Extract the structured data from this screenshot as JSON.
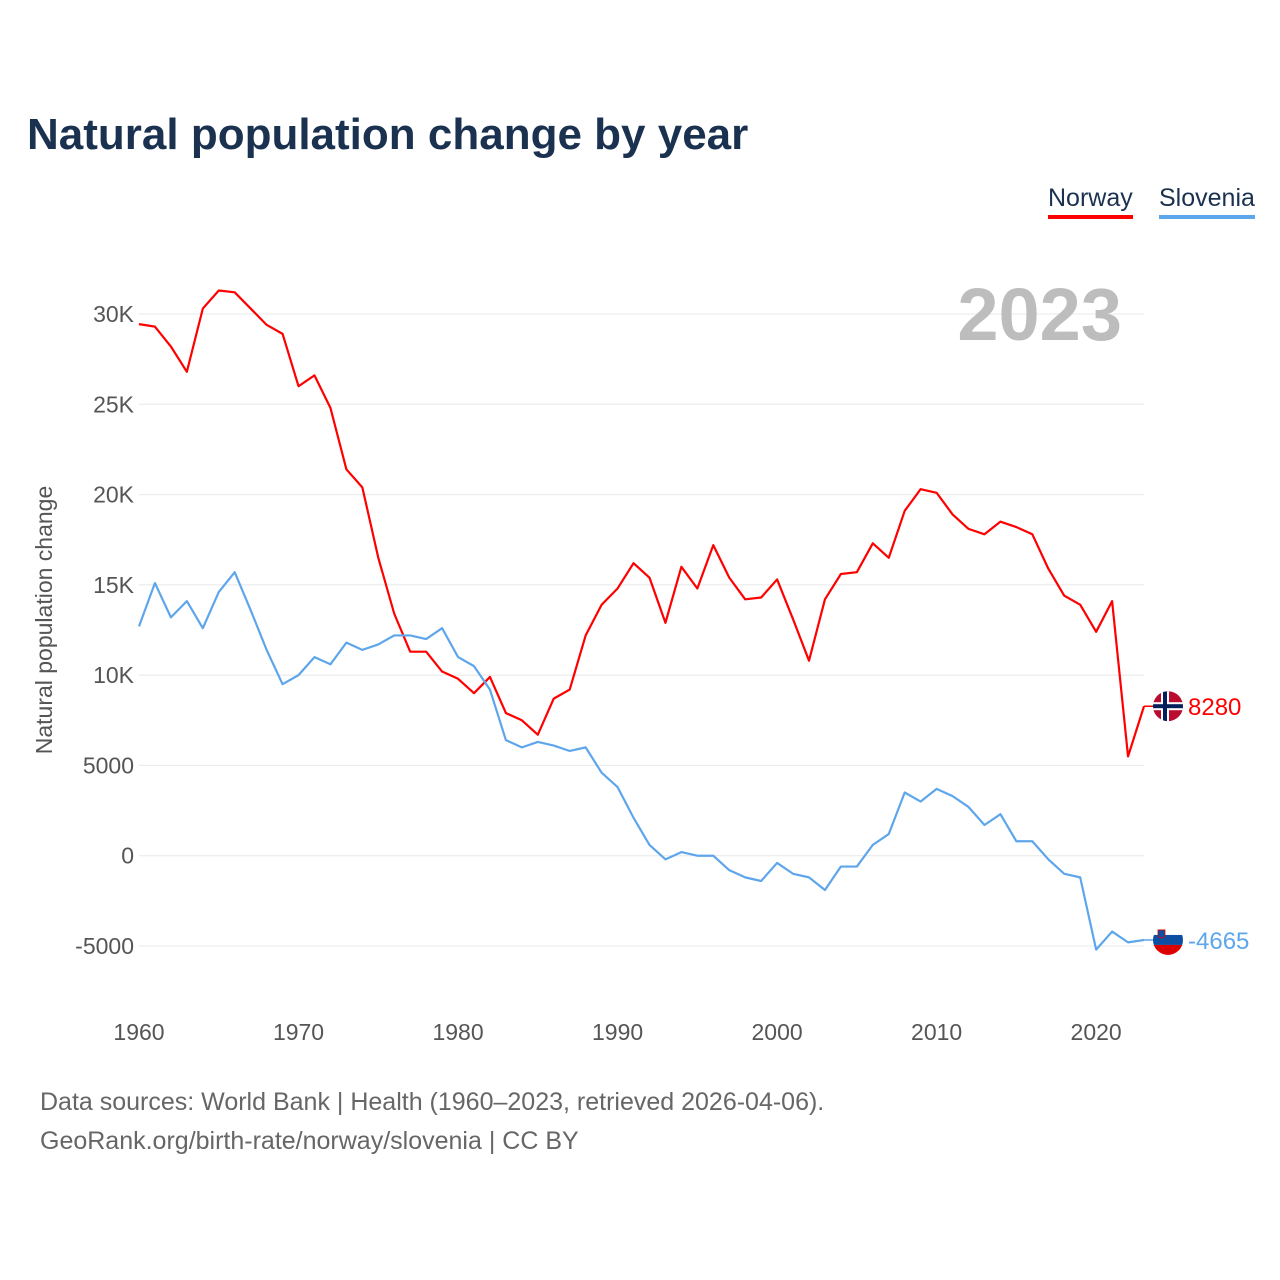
{
  "chart_data": {
    "type": "line",
    "title": "Natural population change by year",
    "ylabel": "Natural population change",
    "xlabel": "",
    "year_label": "2023",
    "xlim": [
      1960,
      2023
    ],
    "ylim": [
      -5000,
      30000
    ],
    "x_ticks": [
      1960,
      1970,
      1980,
      1990,
      2000,
      2010,
      2020
    ],
    "y_ticks": [
      -5000,
      0,
      5000,
      10000,
      15000,
      20000,
      25000,
      30000
    ],
    "y_tick_labels": [
      "-5000",
      "0",
      "5000",
      "10K",
      "15K",
      "20K",
      "25K",
      "30K"
    ],
    "legend": "top-right",
    "grid": true,
    "series": [
      {
        "name": "Norway",
        "color": "#ff0000",
        "end_label": "8280",
        "values": [
          29440,
          29300,
          28200,
          26800,
          30300,
          31300,
          31200,
          30300,
          29400,
          28900,
          26000,
          26600,
          24800,
          21400,
          20400,
          16500,
          13400,
          11300,
          11300,
          10200,
          9800,
          9000,
          9900,
          7900,
          7500,
          6700,
          8700,
          9200,
          12200,
          13900,
          14800,
          16200,
          15400,
          12900,
          16000,
          14800,
          17200,
          15400,
          14200,
          14300,
          15300,
          13100,
          10800,
          14200,
          15600,
          15700,
          17300,
          16500,
          19100,
          20300,
          20100,
          18900,
          18100,
          17800,
          18500,
          18200,
          17800,
          15900,
          14400,
          13900,
          12400,
          14100,
          5500,
          8280
        ]
      },
      {
        "name": "Slovenia",
        "color": "#5ea6ec",
        "end_label": "-4665",
        "values": [
          12700,
          15100,
          13200,
          14100,
          12600,
          14600,
          15700,
          13600,
          11400,
          9500,
          10000,
          11000,
          10600,
          11800,
          11400,
          11700,
          12200,
          12200,
          12000,
          12600,
          11000,
          10500,
          9200,
          6400,
          6000,
          6300,
          6100,
          5800,
          6000,
          4600,
          3800,
          2100,
          600,
          -200,
          200,
          0,
          0,
          -800,
          -1200,
          -1400,
          -400,
          -1000,
          -1200,
          -1900,
          -600,
          -600,
          600,
          1200,
          3500,
          3000,
          3700,
          3300,
          2700,
          1700,
          2300,
          800,
          800,
          -200,
          -1000,
          -1200,
          -5200,
          -4200,
          -4800,
          -4665
        ]
      }
    ]
  },
  "footer": {
    "line1": "Data sources: World Bank | Health (1960–2023, retrieved 2026-04-06).",
    "line2": "GeoRank.org/birth-rate/norway/slovenia | CC BY"
  }
}
